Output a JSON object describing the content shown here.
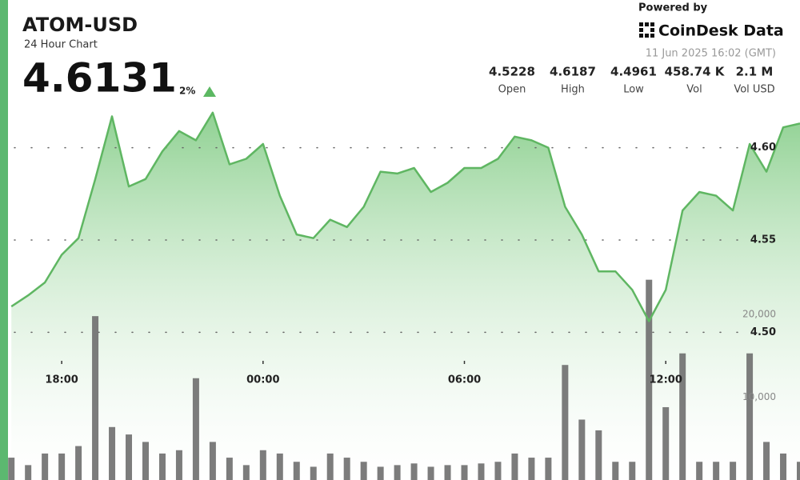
{
  "header": {
    "powered_by": "Powered by",
    "brand": "CoinDesk Data",
    "timestamp": "11 Jun 2025 16:02 (GMT)",
    "price": "4.6131",
    "change": "2%",
    "stats": [
      {
        "value": "4.5228",
        "label": "Open"
      },
      {
        "value": "4.6187",
        "label": "High"
      },
      {
        "value": "4.4961",
        "label": "Low"
      },
      {
        "value": "458.74 K",
        "label": "Vol"
      },
      {
        "value": "2.1 M",
        "label": "Vol USD"
      }
    ]
  },
  "chart_data": {
    "type": "line",
    "title": "ATOM-USD",
    "subtitle": "24 Hour Chart",
    "x": [
      16.5,
      17,
      17.5,
      18,
      18.5,
      19,
      19.5,
      20,
      20.5,
      21,
      21.5,
      22,
      22.5,
      23,
      23.5,
      24,
      24.5,
      25,
      25.5,
      26,
      26.5,
      27,
      27.5,
      28,
      28.5,
      29,
      29.5,
      30,
      30.5,
      31,
      31.5,
      32,
      32.5,
      33,
      33.5,
      34,
      34.5,
      35,
      35.5,
      36,
      36.5,
      37,
      37.5,
      38,
      38.5,
      39,
      39.5,
      40
    ],
    "values": [
      4.514,
      4.52,
      4.527,
      4.542,
      4.551,
      4.583,
      4.617,
      4.579,
      4.583,
      4.598,
      4.609,
      4.604,
      4.619,
      4.591,
      4.594,
      4.602,
      4.574,
      4.553,
      4.551,
      4.561,
      4.557,
      4.568,
      4.587,
      4.586,
      4.589,
      4.576,
      4.581,
      4.589,
      4.589,
      4.594,
      4.606,
      4.604,
      4.6,
      4.568,
      4.553,
      4.533,
      4.533,
      4.523,
      4.506,
      4.523,
      4.566,
      4.576,
      4.574,
      4.566,
      4.602,
      4.587,
      4.611,
      4.6131
    ],
    "color": "#5fb662",
    "volume": {
      "axis": "y2",
      "color": "#6e6e6e",
      "values": [
        2700,
        1800,
        3200,
        3200,
        4100,
        19800,
        6400,
        5500,
        4600,
        3200,
        3600,
        12300,
        4600,
        2700,
        1800,
        3600,
        3200,
        2200,
        1600,
        3200,
        2700,
        2200,
        1600,
        1800,
        2000,
        1600,
        1800,
        1800,
        2000,
        2200,
        3200,
        2700,
        2700,
        13900,
        7300,
        6000,
        2200,
        2200,
        24200,
        8800,
        15300,
        2200,
        2200,
        2200,
        15300,
        4600,
        3200,
        2200
      ]
    },
    "xlim": [
      16.4,
      40.0
    ],
    "xticks": [
      {
        "value": 18,
        "label": "18:00"
      },
      {
        "value": 24,
        "label": "00:00"
      },
      {
        "value": 30,
        "label": "06:00"
      },
      {
        "value": 36,
        "label": "12:00"
      }
    ],
    "ylim": [
      4.42,
      4.68
    ],
    "yticks": [
      {
        "value": 4.5,
        "label": "4.50"
      },
      4.55,
      {
        "value": 4.6,
        "label": "4.60"
      }
    ],
    "y2lim": [
      0,
      58000
    ],
    "y2ticks": [
      {
        "value": 10000,
        "label": "10,000"
      },
      {
        "value": 20000,
        "label": "20,000"
      }
    ],
    "grid": true
  }
}
